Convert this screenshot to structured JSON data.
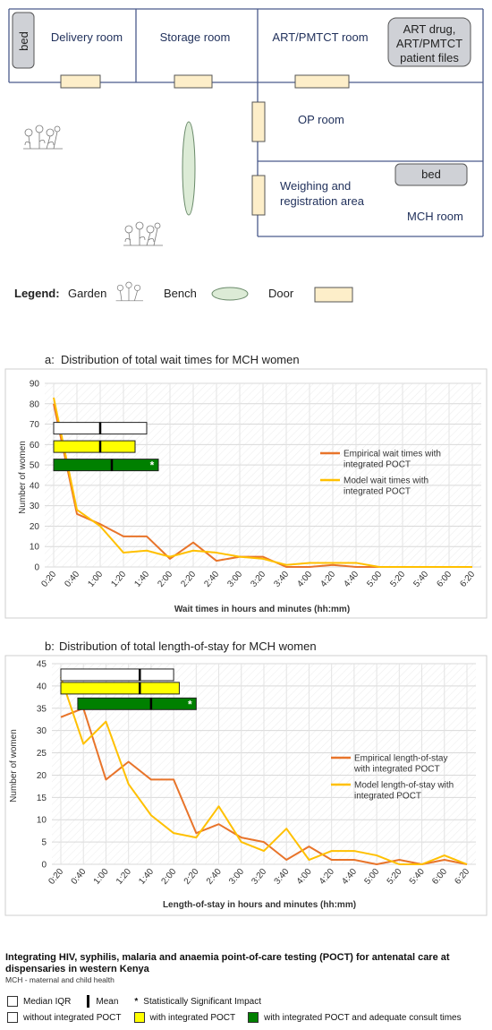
{
  "floorplan": {
    "rooms": {
      "bed_left": "bed",
      "delivery": "Delivery room",
      "storage": "Storage room",
      "art_pmtct": "ART/PMTCT room",
      "art_files_line1": "ART drug,",
      "art_files_line2": "ART/PMTCT",
      "art_files_line3": "patient files",
      "op": "OP room",
      "weighing_line1": "Weighing and",
      "weighing_line2": "registration area",
      "bed_right": "bed",
      "mch": "MCH room"
    },
    "legend": {
      "title": "Legend:",
      "garden": "Garden",
      "bench": "Bench",
      "door": "Door"
    },
    "colors": {
      "wall": "#4a5a8c",
      "door": "#fdeec9",
      "bench": "#dcebd6",
      "bed": "#cfd1d6"
    }
  },
  "chart_data": [
    {
      "type": "line",
      "title_prefix": "a:",
      "title": "Distribution of total wait times for MCH women",
      "xlabel": "Wait times in hours and minutes (hh:mm)",
      "ylabel": "Number of women",
      "x": [
        "0:20",
        "0:40",
        "1:00",
        "1:20",
        "1:40",
        "2:00",
        "2:20",
        "2:40",
        "3:00",
        "3:20",
        "3:40",
        "4:00",
        "4:20",
        "4:40",
        "5:00",
        "5:20",
        "5:40",
        "6:00",
        "6:20"
      ],
      "ylim": [
        0,
        90
      ],
      "yticks": [
        0,
        10,
        20,
        30,
        40,
        50,
        60,
        70,
        80,
        90
      ],
      "grid": true,
      "series": [
        {
          "name": "Empirical wait times with integrated POCT",
          "color": "#e8742a",
          "values": [
            80,
            26,
            21,
            15,
            15,
            4,
            12,
            3,
            5,
            5,
            0,
            0,
            1,
            0,
            0,
            0,
            0,
            0,
            0
          ]
        },
        {
          "name": "Model wait times with integrated POCT",
          "color": "#ffc000",
          "values": [
            83,
            28,
            20,
            7,
            8,
            5,
            8,
            7,
            5,
            4,
            1,
            2,
            2,
            2,
            0,
            0,
            0,
            0,
            0
          ]
        }
      ],
      "boxplots": [
        {
          "group": "without integrated POCT",
          "fill": "#ffffff",
          "start": "0:20",
          "end": "1:40",
          "mean": "1:00",
          "y": 68,
          "significant": false
        },
        {
          "group": "with integrated POCT",
          "fill": "#ffff00",
          "start": "0:20",
          "end": "1:30",
          "mean": "1:00",
          "y": 59,
          "significant": false
        },
        {
          "group": "with integrated POCT and adequate consult times",
          "fill": "#008000",
          "start": "0:20",
          "end": "1:50",
          "mean": "1:10",
          "y": 50,
          "significant": true
        }
      ]
    },
    {
      "type": "line",
      "title_prefix": "b:",
      "title": "Distribution of total length-of-stay for MCH women",
      "xlabel": "Length-of-stay in hours and minutes (hh:mm)",
      "ylabel": "Number of women",
      "x": [
        "0:20",
        "0:40",
        "1:00",
        "1:20",
        "1:40",
        "2:00",
        "2:20",
        "2:40",
        "3:00",
        "3:20",
        "3:40",
        "4:00",
        "4:20",
        "4:40",
        "5:00",
        "5:20",
        "5:40",
        "6:00",
        "6:20"
      ],
      "ylim": [
        0,
        45
      ],
      "yticks": [
        0,
        5,
        10,
        15,
        20,
        25,
        30,
        35,
        40,
        45
      ],
      "grid": true,
      "series": [
        {
          "name": "Empirical length-of-stay with integrated POCT",
          "color": "#e8742a",
          "values": [
            33,
            35,
            19,
            23,
            19,
            19,
            7,
            9,
            6,
            5,
            1,
            4,
            1,
            1,
            0,
            1,
            0,
            1,
            0
          ]
        },
        {
          "name": "Model length-of-stay with integrated POCT",
          "color": "#ffc000",
          "values": [
            42,
            27,
            32,
            18,
            11,
            7,
            6,
            13,
            5,
            3,
            8,
            1,
            3,
            3,
            2,
            0,
            0,
            2,
            0
          ]
        }
      ],
      "boxplots": [
        {
          "group": "without integrated POCT",
          "fill": "#ffffff",
          "start": "0:20",
          "end": "2:00",
          "mean": "1:30",
          "y": 42.5,
          "significant": false
        },
        {
          "group": "with integrated POCT",
          "fill": "#ffff00",
          "start": "0:20",
          "end": "2:05",
          "mean": "1:30",
          "y": 39.5,
          "significant": false
        },
        {
          "group": "with integrated POCT and adequate consult times",
          "fill": "#008000",
          "start": "0:35",
          "end": "2:20",
          "mean": "1:40",
          "y": 36,
          "significant": true
        }
      ]
    }
  ],
  "footer": {
    "title": "Integrating HIV, syphilis, malaria and anaemia point-of-care testing (POCT) for antenatal care at dispensaries in western Kenya",
    "subtitle": "MCH - maternal and child health",
    "key_median": "Median IQR",
    "key_mean": "Mean",
    "key_sig": "Statistically Significant Impact",
    "key_without": "without integrated POCT",
    "key_with": "with integrated POCT",
    "key_adequate": "with integrated POCT and adequate consult times"
  }
}
